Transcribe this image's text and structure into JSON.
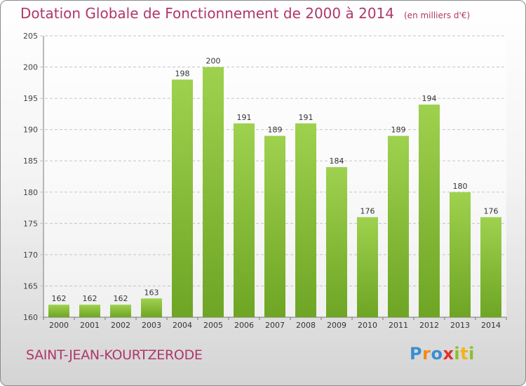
{
  "chart_data": {
    "type": "bar",
    "title": "Dotation Globale de Fonctionnement de 2000 à 2014",
    "unit_note": "(en milliers d'€)",
    "categories": [
      "2000",
      "2001",
      "2002",
      "2003",
      "2004",
      "2005",
      "2006",
      "2007",
      "2008",
      "2009",
      "2010",
      "2011",
      "2012",
      "2013",
      "2014"
    ],
    "values": [
      162,
      162,
      162,
      163,
      198,
      200,
      191,
      189,
      191,
      184,
      176,
      189,
      194,
      180,
      176
    ],
    "ylim": [
      160,
      205
    ],
    "yticks": [
      160,
      165,
      170,
      175,
      180,
      185,
      190,
      195,
      200,
      205
    ],
    "grid": true,
    "xlabel": "",
    "ylabel": "",
    "bar_color_light": "#9ed14e",
    "bar_color_dark": "#6ea524"
  },
  "commune": "SAINT-JEAN-KOURTZERODE",
  "brand": {
    "name": "Proxiti",
    "letters": [
      "P",
      "r",
      "o",
      "x",
      "i",
      "t",
      "i"
    ]
  }
}
